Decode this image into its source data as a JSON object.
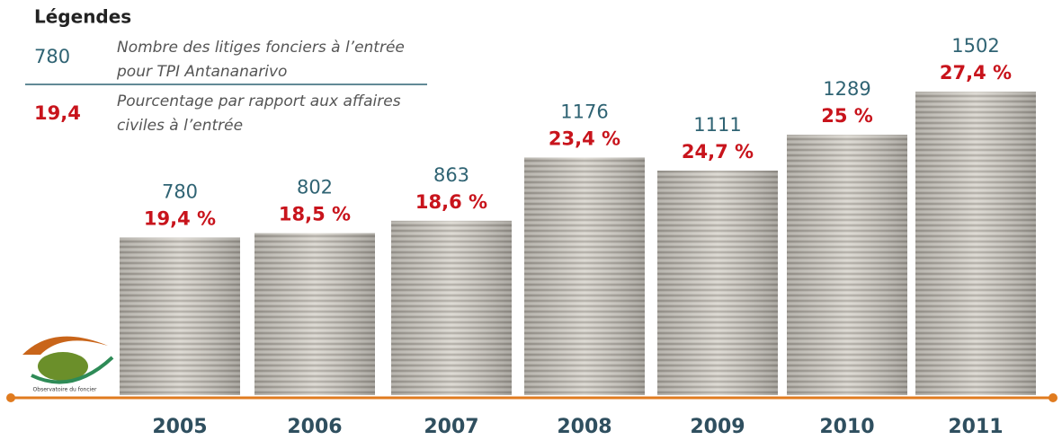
{
  "chart_data": {
    "type": "bar",
    "legend_title": "Légendes",
    "legend_samples": [
      780,
      "19,4"
    ],
    "categories": [
      "2005",
      "2006",
      "2007",
      "2008",
      "2009",
      "2010",
      "2011"
    ],
    "series": [
      {
        "name": "Nombre des litiges fonciers à l’entrée pour TPI Antananarivo",
        "color": "#2f6373",
        "values": [
          780,
          802,
          863,
          1176,
          1111,
          1289,
          1502
        ]
      },
      {
        "name": "Pourcentage par rapport aux affaires civiles à l’entrée",
        "color": "#c8141c",
        "values": [
          19.4,
          18.5,
          18.6,
          23.4,
          24.7,
          25,
          27.4
        ],
        "value_labels": [
          "19,4 %",
          "18,5 %",
          "18,6 %",
          "23,4 %",
          "24,7 %",
          "25 %",
          "27,4 %"
        ]
      }
    ],
    "logo_text": "Observatoire du foncier"
  }
}
